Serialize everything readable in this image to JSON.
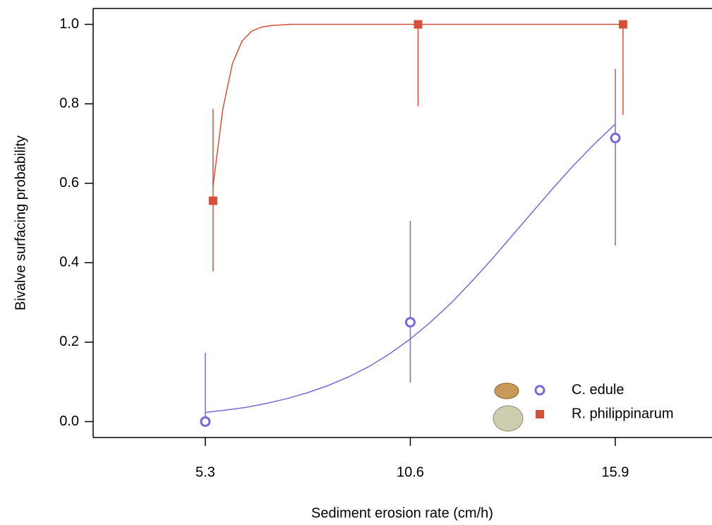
{
  "chart_data": {
    "type": "scatter",
    "xlabel": "Sediment erosion rate (cm/h)",
    "ylabel": "Bivalve surfacing probability",
    "xlim": [
      2.4,
      18.4
    ],
    "ylim": [
      -0.04,
      1.04
    ],
    "xticks": [
      5.3,
      10.6,
      15.9
    ],
    "yticks": [
      {
        "value": 0,
        "label": "0.0"
      },
      0.2,
      0.4,
      0.6,
      0.8,
      {
        "value": 1,
        "label": "1.0"
      }
    ],
    "legend": "bottom-right",
    "series": [
      {
        "name": "C. edule",
        "color": "#7b68d8",
        "marker": "open-circle",
        "x": [
          5.3,
          10.6,
          15.9
        ],
        "values": [
          0.0,
          0.25,
          0.714
        ],
        "ci_low": [
          0.0,
          0.098,
          0.443
        ],
        "ci_high": [
          0.173,
          0.505,
          0.888
        ],
        "fit": {
          "x": [
            5.3,
            5.83,
            6.36,
            6.89,
            7.42,
            7.95,
            8.48,
            9.01,
            9.54,
            10.07,
            10.6,
            11.13,
            11.66,
            12.19,
            12.72,
            13.25,
            13.78,
            14.31,
            14.84,
            15.37,
            15.9
          ],
          "values": [
            0.023,
            0.029,
            0.036,
            0.046,
            0.058,
            0.073,
            0.091,
            0.113,
            0.139,
            0.171,
            0.208,
            0.251,
            0.299,
            0.353,
            0.41,
            0.47,
            0.53,
            0.59,
            0.647,
            0.7,
            0.749
          ]
        }
      },
      {
        "name": "R. philippinarum",
        "color": "#d4503a",
        "marker": "square",
        "x": [
          5.5,
          10.8,
          16.1
        ],
        "values": [
          0.556,
          1.0,
          1.0
        ],
        "ci_low": [
          0.378,
          0.794,
          0.772
        ],
        "ci_high": [
          0.787,
          1.0,
          1.0
        ],
        "fit": {
          "x": [
            5.5,
            5.75,
            6.0,
            6.25,
            6.5,
            6.75,
            7.0,
            7.5,
            16.1
          ],
          "values": [
            0.593,
            0.785,
            0.901,
            0.958,
            0.983,
            0.993,
            0.997,
            1.0,
            1.0
          ]
        }
      }
    ]
  }
}
